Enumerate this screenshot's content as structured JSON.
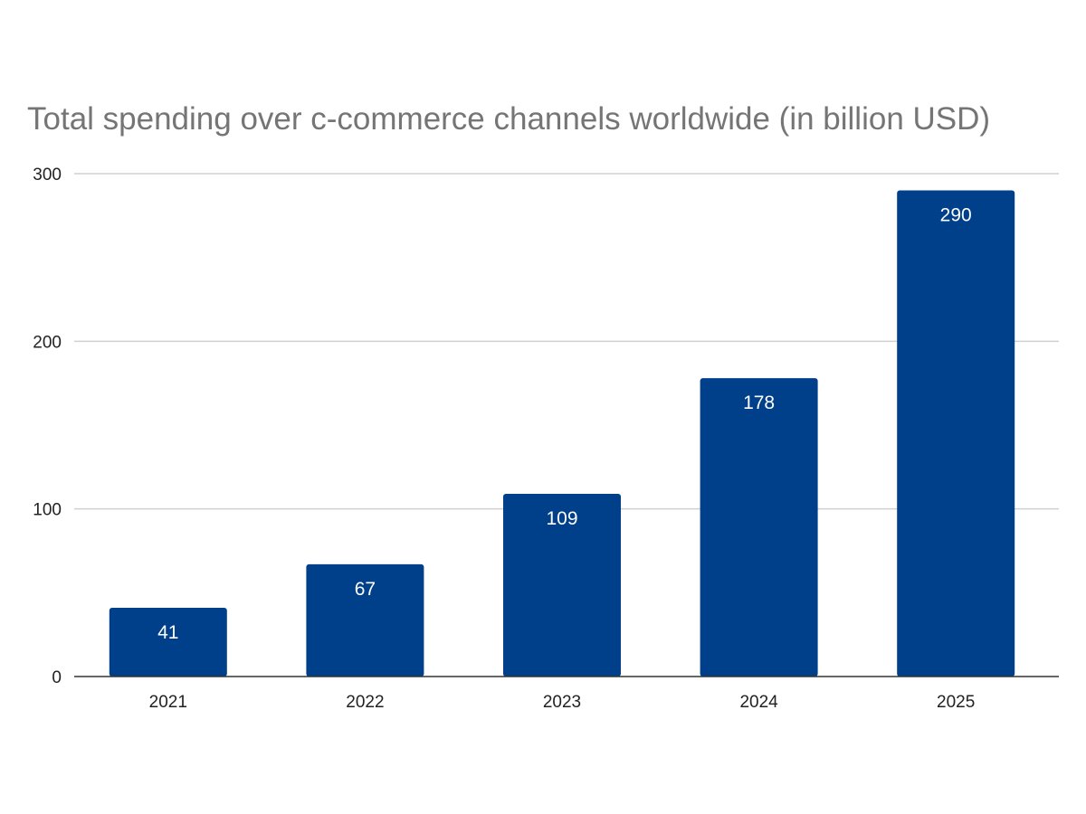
{
  "chart_data": {
    "type": "bar",
    "title": "Total spending over c-commerce channels worldwide (in billion USD)",
    "categories": [
      "2021",
      "2022",
      "2023",
      "2024",
      "2025"
    ],
    "values": [
      41,
      67,
      109,
      178,
      290
    ],
    "ylim": [
      0,
      300
    ],
    "yticks": [
      0,
      100,
      200,
      300
    ],
    "grid": true,
    "legend": "none",
    "data_labels": "inside-top",
    "bar_color": "#003f8a",
    "label_color": "#ffffff"
  }
}
